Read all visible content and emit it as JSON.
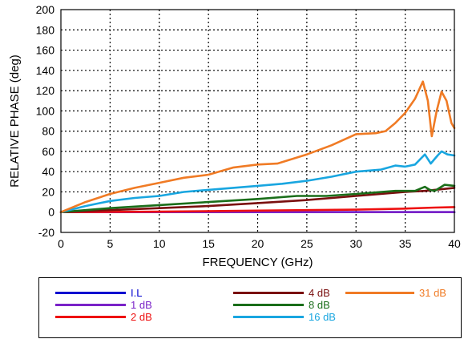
{
  "chart_data": {
    "type": "line",
    "title": "",
    "xlabel": "FREQUENCY (GHz)",
    "ylabel": "RELATIVE PHASE (deg)",
    "xlim": [
      0,
      40
    ],
    "ylim": [
      -20,
      200
    ],
    "x_ticks": [
      "0",
      "5",
      "10",
      "15",
      "20",
      "25",
      "30",
      "35",
      "40"
    ],
    "y_ticks": [
      "-20",
      "0",
      "20",
      "40",
      "60",
      "80",
      "100",
      "120",
      "140",
      "160",
      "180",
      "200"
    ],
    "grid": "dotted",
    "legend_position": "bottom",
    "series": [
      {
        "name": "I.L",
        "color": "#0000d0",
        "points": [
          [
            0,
            0
          ],
          [
            40,
            0
          ]
        ]
      },
      {
        "name": "1 dB",
        "color": "#7a22c8",
        "points": [
          [
            0,
            0
          ],
          [
            10,
            0
          ],
          [
            20,
            0
          ],
          [
            30,
            0
          ],
          [
            40,
            0
          ]
        ]
      },
      {
        "name": "2 dB",
        "color": "#ee1111",
        "points": [
          [
            0,
            0
          ],
          [
            10,
            0.5
          ],
          [
            20,
            1.5
          ],
          [
            30,
            2.5
          ],
          [
            35,
            3.5
          ],
          [
            38,
            4.5
          ],
          [
            40,
            5
          ]
        ]
      },
      {
        "name": "4 dB",
        "color": "#7a0f0f",
        "points": [
          [
            0,
            0
          ],
          [
            5,
            2
          ],
          [
            10,
            4
          ],
          [
            15,
            6
          ],
          [
            20,
            9
          ],
          [
            25,
            12
          ],
          [
            30,
            16
          ],
          [
            35,
            20
          ],
          [
            37,
            21
          ],
          [
            38,
            22
          ],
          [
            40,
            24
          ]
        ]
      },
      {
        "name": "8 dB",
        "color": "#1a6e1a",
        "points": [
          [
            0,
            0
          ],
          [
            5,
            4
          ],
          [
            10,
            7
          ],
          [
            15,
            10
          ],
          [
            20,
            13
          ],
          [
            24,
            16
          ],
          [
            27,
            16
          ],
          [
            30,
            18
          ],
          [
            34,
            21
          ],
          [
            36,
            21
          ],
          [
            37,
            25
          ],
          [
            37.5,
            22
          ],
          [
            38,
            21
          ],
          [
            39,
            27
          ],
          [
            40,
            26
          ]
        ]
      },
      {
        "name": "16 dB",
        "color": "#19a6e0",
        "points": [
          [
            0,
            0
          ],
          [
            2.5,
            6
          ],
          [
            5,
            11
          ],
          [
            7.5,
            14
          ],
          [
            10,
            16
          ],
          [
            12.5,
            20
          ],
          [
            15,
            22
          ],
          [
            17.5,
            24
          ],
          [
            20,
            26
          ],
          [
            22.5,
            28
          ],
          [
            25,
            31
          ],
          [
            27.5,
            35
          ],
          [
            30,
            40
          ],
          [
            32.5,
            42
          ],
          [
            34,
            46
          ],
          [
            35,
            45
          ],
          [
            36,
            47
          ],
          [
            37,
            57
          ],
          [
            37.6,
            48
          ],
          [
            38.3,
            56
          ],
          [
            38.7,
            60
          ],
          [
            39.3,
            57
          ],
          [
            40,
            56
          ]
        ]
      },
      {
        "name": "31 dB",
        "color": "#f07b25",
        "points": [
          [
            0,
            0
          ],
          [
            2.5,
            10
          ],
          [
            5,
            18
          ],
          [
            7.5,
            24
          ],
          [
            10,
            29
          ],
          [
            12.5,
            34
          ],
          [
            15,
            37
          ],
          [
            17.5,
            44
          ],
          [
            20,
            47
          ],
          [
            22,
            48
          ],
          [
            25,
            57
          ],
          [
            27.5,
            66
          ],
          [
            30,
            77
          ],
          [
            32,
            78
          ],
          [
            33,
            80
          ],
          [
            34,
            88
          ],
          [
            35,
            98
          ],
          [
            36,
            112
          ],
          [
            36.8,
            129
          ],
          [
            37.3,
            110
          ],
          [
            37.7,
            75
          ],
          [
            38.2,
            100
          ],
          [
            38.7,
            119
          ],
          [
            39.2,
            110
          ],
          [
            39.7,
            88
          ],
          [
            40,
            83
          ]
        ]
      }
    ]
  }
}
